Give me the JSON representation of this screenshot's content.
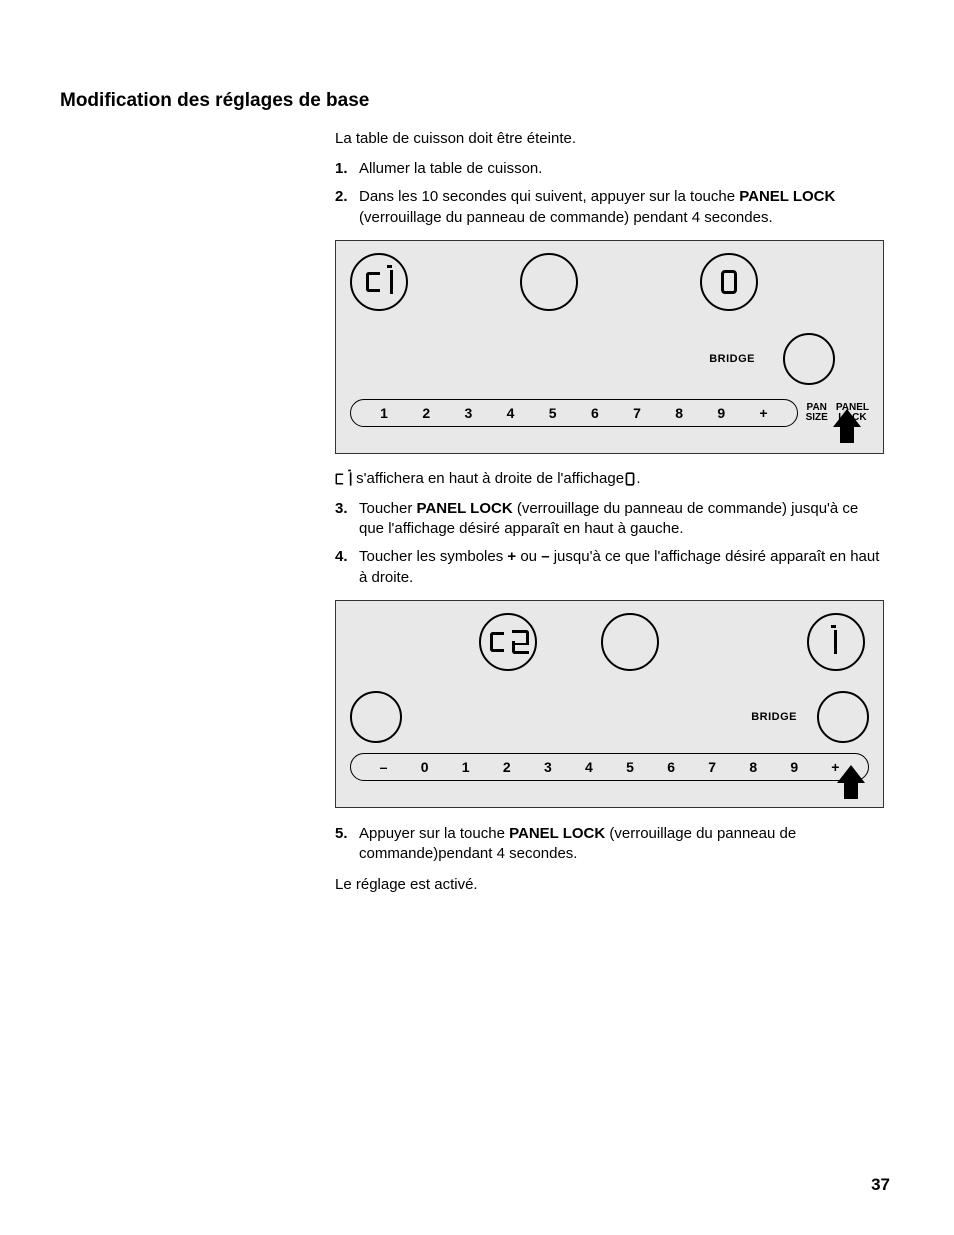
{
  "heading": "Modification des réglages de base",
  "intro": "La table de cuisson doit être éteinte.",
  "steps": {
    "s1": {
      "num": "1.",
      "text": "Allumer la table de cuisson."
    },
    "s2": {
      "num": "2.",
      "before": "Dans les 10 secondes qui suivent, appuyer sur la touche ",
      "bold": "PANEL LOCK",
      "after": " (verrouillage du panneau de commande) pendant 4 secondes."
    },
    "note": {
      "before": " s'affichera en haut à droite de l'affichage ",
      "after": "."
    },
    "s3": {
      "num": "3.",
      "before": "Toucher ",
      "bold": "PANEL LOCK",
      "after": " (verrouillage du panneau de commande) jusqu'à ce que l'affichage désiré apparaît en haut à gauche."
    },
    "s4": {
      "num": "4.",
      "before": "Toucher les symboles ",
      "b1": "+",
      "mid": " ou ",
      "b2": "–",
      "after": " jusqu'à ce que l'affichage désiré apparaît en haut à droite."
    },
    "s5": {
      "num": "5.",
      "before": "Appuyer sur la touche ",
      "bold": "PANEL LOCK",
      "after": " (verrouillage du panneau de commande)pendant 4 secondes."
    }
  },
  "closing": "Le réglage est activé.",
  "panel1": {
    "bridge": "BRIDGE",
    "slider": [
      "1",
      "2",
      "3",
      "4",
      "5",
      "6",
      "7",
      "8",
      "9",
      "+"
    ],
    "side": {
      "pan": "PAN\nSIZE",
      "lock": "PANEL\nLOCK"
    },
    "display_left": "c 1",
    "display_right": "0"
  },
  "panel2": {
    "bridge": "BRIDGE",
    "slider": [
      "–",
      "0",
      "1",
      "2",
      "3",
      "4",
      "5",
      "6",
      "7",
      "8",
      "9",
      "+"
    ],
    "display_center": "c 2",
    "display_right": "1"
  },
  "page_number": "37",
  "colors": {
    "panel_bg": "#e8e8e8",
    "stroke": "#000000"
  }
}
